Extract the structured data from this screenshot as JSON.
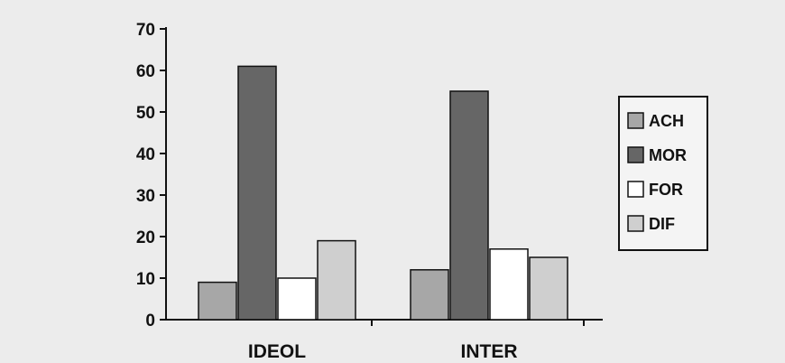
{
  "chart_data": {
    "type": "bar",
    "categories": [
      "IDEOL",
      "INTER"
    ],
    "series": [
      {
        "name": "ACH",
        "values": [
          9,
          12
        ],
        "color": "#a7a7a7"
      },
      {
        "name": "MOR",
        "values": [
          61,
          55
        ],
        "color": "#666666"
      },
      {
        "name": "FOR",
        "values": [
          10,
          17
        ],
        "color": "#ffffff"
      },
      {
        "name": "DIF",
        "values": [
          19,
          15
        ],
        "color": "#cfcfcf"
      }
    ],
    "ylim": [
      0,
      70
    ],
    "yticks": [
      0,
      10,
      20,
      30,
      40,
      50,
      60,
      70
    ],
    "title": "",
    "xlabel": "",
    "ylabel": "",
    "grid": false,
    "legend": {
      "placement": "right"
    }
  },
  "colors": {
    "background": "#ececec",
    "axis": "#111111",
    "bar_stroke": "#111111"
  }
}
